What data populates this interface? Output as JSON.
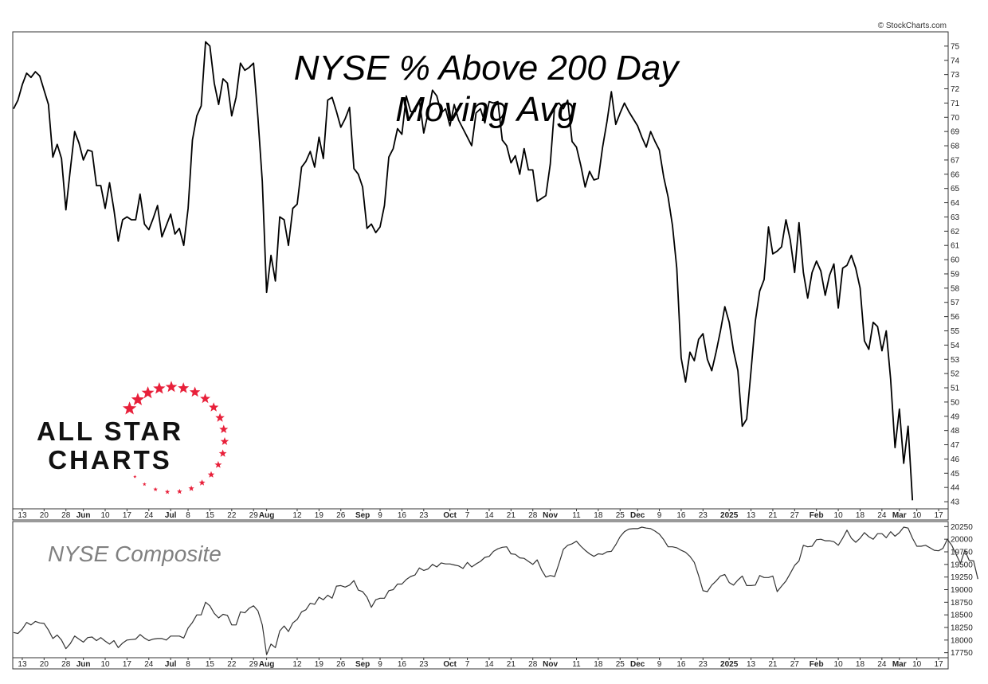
{
  "credit": "© StockCharts.com",
  "logo": {
    "line1": "ALL STAR",
    "line2": "CHARTS",
    "star_color": "#e8203a"
  },
  "colors": {
    "frame": "#333333",
    "line_top": "#000000",
    "line_bottom": "#333333",
    "subtitle": "#808080"
  },
  "chart_data": [
    {
      "type": "line",
      "title_line1": "NYSE % Above 200 Day",
      "title_line2": "Moving Avg",
      "ylim": [
        42.5,
        76
      ],
      "y_ticks": [
        43,
        44,
        45,
        46,
        47,
        48,
        49,
        50,
        51,
        52,
        53,
        54,
        55,
        56,
        57,
        58,
        59,
        60,
        61,
        62,
        63,
        64,
        65,
        66,
        67,
        68,
        69,
        70,
        71,
        72,
        73,
        74,
        75
      ],
      "x_tick_labels": [
        {
          "x": 2,
          "label": "13",
          "bold": false
        },
        {
          "x": 7,
          "label": "20",
          "bold": false
        },
        {
          "x": 12,
          "label": "28",
          "bold": false
        },
        {
          "x": 16,
          "label": "Jun",
          "bold": true
        },
        {
          "x": 21,
          "label": "10",
          "bold": false
        },
        {
          "x": 26,
          "label": "17",
          "bold": false
        },
        {
          "x": 31,
          "label": "24",
          "bold": false
        },
        {
          "x": 36,
          "label": "Jul",
          "bold": true
        },
        {
          "x": 40,
          "label": "8",
          "bold": false
        },
        {
          "x": 45,
          "label": "15",
          "bold": false
        },
        {
          "x": 50,
          "label": "22",
          "bold": false
        },
        {
          "x": 55,
          "label": "29",
          "bold": false
        },
        {
          "x": 58,
          "label": "Aug",
          "bold": true
        },
        {
          "x": 65,
          "label": "12",
          "bold": false
        },
        {
          "x": 70,
          "label": "19",
          "bold": false
        },
        {
          "x": 75,
          "label": "26",
          "bold": false
        },
        {
          "x": 80,
          "label": "Sep",
          "bold": true
        },
        {
          "x": 84,
          "label": "9",
          "bold": false
        },
        {
          "x": 89,
          "label": "16",
          "bold": false
        },
        {
          "x": 94,
          "label": "23",
          "bold": false
        },
        {
          "x": 100,
          "label": "Oct",
          "bold": true
        },
        {
          "x": 104,
          "label": "7",
          "bold": false
        },
        {
          "x": 109,
          "label": "14",
          "bold": false
        },
        {
          "x": 114,
          "label": "21",
          "bold": false
        },
        {
          "x": 119,
          "label": "28",
          "bold": false
        },
        {
          "x": 123,
          "label": "Nov",
          "bold": true
        },
        {
          "x": 129,
          "label": "11",
          "bold": false
        },
        {
          "x": 134,
          "label": "18",
          "bold": false
        },
        {
          "x": 139,
          "label": "25",
          "bold": false
        },
        {
          "x": 143,
          "label": "Dec",
          "bold": true
        },
        {
          "x": 148,
          "label": "9",
          "bold": false
        },
        {
          "x": 153,
          "label": "16",
          "bold": false
        },
        {
          "x": 158,
          "label": "23",
          "bold": false
        },
        {
          "x": 164,
          "label": "2025",
          "bold": true
        },
        {
          "x": 169,
          "label": "13",
          "bold": false
        },
        {
          "x": 174,
          "label": "21",
          "bold": false
        },
        {
          "x": 179,
          "label": "27",
          "bold": false
        },
        {
          "x": 184,
          "label": "Feb",
          "bold": true
        },
        {
          "x": 189,
          "label": "10",
          "bold": false
        },
        {
          "x": 194,
          "label": "18",
          "bold": false
        },
        {
          "x": 199,
          "label": "24",
          "bold": false
        },
        {
          "x": 203,
          "label": "Mar",
          "bold": true
        },
        {
          "x": 207,
          "label": "10",
          "bold": false
        },
        {
          "x": 212,
          "label": "17",
          "bold": false
        }
      ],
      "xlim": [
        0,
        214
      ],
      "x_index_start": 0,
      "values": [
        70.6,
        71.2,
        72.3,
        73.1,
        72.8,
        73.2,
        72.9,
        71.9,
        70.9,
        67.2,
        68.1,
        67.1,
        63.5,
        66.3,
        69.0,
        68.2,
        67.0,
        67.7,
        67.6,
        65.2,
        65.2,
        63.6,
        65.4,
        63.5,
        61.3,
        62.8,
        63.0,
        62.8,
        62.8,
        64.6,
        62.5,
        62.1,
        62.9,
        63.8,
        61.6,
        62.4,
        63.2,
        61.8,
        62.2,
        61.0,
        63.6,
        68.4,
        70.1,
        70.8,
        75.3,
        75.0,
        72.4,
        70.9,
        72.7,
        72.4,
        70.1,
        71.4,
        73.8,
        73.3,
        73.5,
        73.8,
        70.0,
        65.5,
        57.7,
        60.3,
        58.5,
        63.0,
        62.8,
        61.0,
        63.6,
        63.9,
        66.5,
        66.9,
        67.6,
        66.5,
        68.6,
        67.1,
        71.2,
        71.4,
        70.4,
        69.3,
        69.9,
        70.7,
        66.4,
        66.0,
        65.1,
        62.2,
        62.5,
        61.9,
        62.3,
        63.8,
        67.2,
        67.8,
        69.2,
        68.8,
        71.5,
        70.4,
        70.4,
        71.2,
        68.9,
        70.3,
        71.9,
        71.5,
        70.3,
        70.6,
        69.4,
        70.9,
        69.8,
        69.2,
        68.6,
        68.0,
        70.3,
        70.6,
        69.6,
        71.1,
        71.0,
        71.1,
        68.4,
        68.0,
        66.8,
        67.3,
        66.0,
        67.8,
        66.3,
        66.3,
        64.1,
        64.3,
        64.5,
        66.7,
        70.8,
        71.0,
        70.6,
        71.2,
        68.3,
        67.9,
        66.6,
        65.1,
        66.2,
        65.6,
        65.7,
        67.9,
        69.7,
        71.8,
        69.5,
        70.3,
        71.0,
        70.4,
        69.9,
        69.4,
        68.6,
        67.9,
        69.0,
        68.3,
        67.7,
        65.8,
        64.4,
        62.4,
        59.4,
        53.1,
        51.4,
        53.5,
        52.9,
        54.4,
        54.8,
        53.0,
        52.2,
        53.5,
        55.0,
        56.7,
        55.6,
        53.6,
        52.2,
        48.3,
        48.8,
        52.2,
        55.7,
        57.8,
        58.6,
        62.3,
        60.4,
        60.6,
        60.9,
        62.8,
        61.4,
        59.1,
        62.6,
        59.1,
        57.3,
        59.1,
        59.9,
        59.2,
        57.5,
        58.9,
        59.7,
        56.6,
        59.4,
        59.6,
        60.3,
        59.4,
        58.0,
        54.3,
        53.7,
        55.6,
        55.3,
        53.6,
        55.0,
        51.6,
        46.8,
        49.5,
        45.7,
        48.3,
        43.1
      ]
    },
    {
      "type": "line",
      "name": "NYSE Composite",
      "ylim": [
        17650,
        20350
      ],
      "y_ticks": [
        17750,
        18000,
        18250,
        18500,
        18750,
        19000,
        19250,
        19500,
        19750,
        20000,
        20250
      ],
      "x_tick_labels_same_as_top": true,
      "xlim": [
        0,
        214
      ],
      "x_index_start": 0,
      "values": [
        18150,
        18130,
        18220,
        18350,
        18300,
        18370,
        18340,
        18330,
        18200,
        18030,
        18100,
        18000,
        17830,
        17930,
        18080,
        18020,
        17960,
        18050,
        18060,
        17990,
        18050,
        17980,
        17920,
        17990,
        17850,
        17940,
        18000,
        18010,
        18020,
        18110,
        18040,
        17990,
        18020,
        18030,
        18030,
        18000,
        18080,
        18080,
        18080,
        18040,
        18240,
        18350,
        18500,
        18500,
        18750,
        18680,
        18530,
        18440,
        18510,
        18490,
        18300,
        18300,
        18560,
        18540,
        18630,
        18680,
        18580,
        18300,
        17710,
        17920,
        17850,
        18180,
        18280,
        18170,
        18340,
        18410,
        18560,
        18600,
        18730,
        18710,
        18850,
        18800,
        18890,
        18830,
        19070,
        19080,
        19050,
        19090,
        19180,
        18990,
        18960,
        18850,
        18650,
        18800,
        18830,
        18830,
        18980,
        19000,
        19110,
        19110,
        19200,
        19260,
        19290,
        19430,
        19380,
        19410,
        19500,
        19450,
        19530,
        19510,
        19510,
        19490,
        19470,
        19420,
        19540,
        19450,
        19510,
        19560,
        19640,
        19660,
        19760,
        19810,
        19840,
        19850,
        19710,
        19700,
        19630,
        19620,
        19560,
        19500,
        19590,
        19390,
        19250,
        19280,
        19260,
        19520,
        19800,
        19880,
        19910,
        19960,
        19860,
        19780,
        19710,
        19660,
        19710,
        19700,
        19750,
        19760,
        19890,
        20050,
        20150,
        20200,
        20210,
        20210,
        20240,
        20220,
        20210,
        20160,
        20100,
        19990,
        19850,
        19850,
        19830,
        19780,
        19740,
        19660,
        19540,
        19280,
        18980,
        18960,
        19090,
        19170,
        19270,
        19300,
        19140,
        19090,
        19190,
        19270,
        19080,
        19080,
        19090,
        19280,
        19240,
        19240,
        19270,
        18960,
        19070,
        19170,
        19320,
        19480,
        19570,
        19880,
        19850,
        19860,
        19990,
        20000,
        19970,
        19970,
        19950,
        19880,
        20020,
        20180,
        20020,
        19940,
        20020,
        20130,
        20050,
        20000,
        20110,
        20110,
        20030,
        20150,
        20060,
        20130,
        20240,
        20220,
        20020,
        19860,
        19860,
        19880,
        19830,
        19780,
        19770,
        19820,
        20000,
        19880,
        19700,
        19520,
        19780,
        19580,
        19570,
        19210
      ]
    }
  ]
}
